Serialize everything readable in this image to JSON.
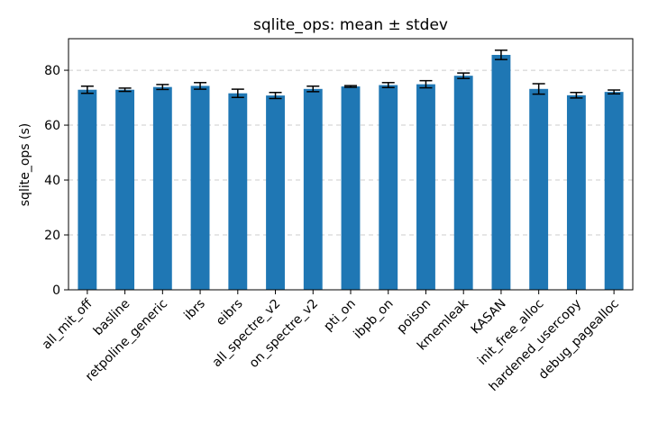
{
  "chart_data": {
    "type": "bar",
    "title": "sqlite_ops: mean ± stdev",
    "xlabel": "",
    "ylabel": "sqlite_ops (s)",
    "ylim": [
      0,
      91.5
    ],
    "yticks": [
      0,
      20,
      40,
      60,
      80
    ],
    "grid": "y",
    "bar_color": "#1f77b4",
    "categories": [
      "all_mit_off",
      "basline",
      "retpoline_generic",
      "ibrs",
      "eibrs",
      "all_spectre_v2",
      "on_spectre_v2",
      "pti_on",
      "ibpb_on",
      "poison",
      "kmemleak",
      "KASAN",
      "init_free_alloc",
      "hardened_usercopy",
      "debug_pagealloc"
    ],
    "values": [
      72.9,
      72.9,
      73.9,
      74.3,
      71.6,
      70.8,
      73.2,
      74.1,
      74.6,
      74.9,
      78.0,
      85.6,
      73.2,
      70.9,
      72.1
    ],
    "errors": [
      1.3,
      0.6,
      0.9,
      1.2,
      1.5,
      1.1,
      1.0,
      0.3,
      0.9,
      1.3,
      1.0,
      1.7,
      1.9,
      1.0,
      0.7
    ]
  }
}
